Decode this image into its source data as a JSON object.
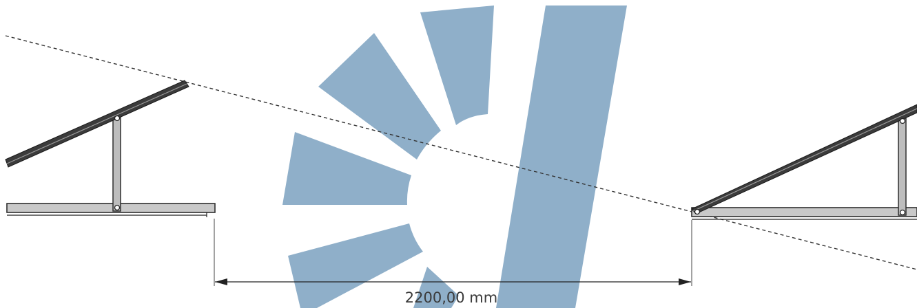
{
  "dimension": {
    "label": "2200,00 mm"
  },
  "colors": {
    "watermark": "#8fafc9",
    "frame": "#c9c9c9",
    "rail": "#3b3b3b",
    "line": "#333333"
  },
  "elements": {
    "left_mount": "solar-mount-frame",
    "right_mount": "solar-mount-frame",
    "shadow_line": "dashed-shadow-line",
    "watermark": "logo-watermark"
  }
}
